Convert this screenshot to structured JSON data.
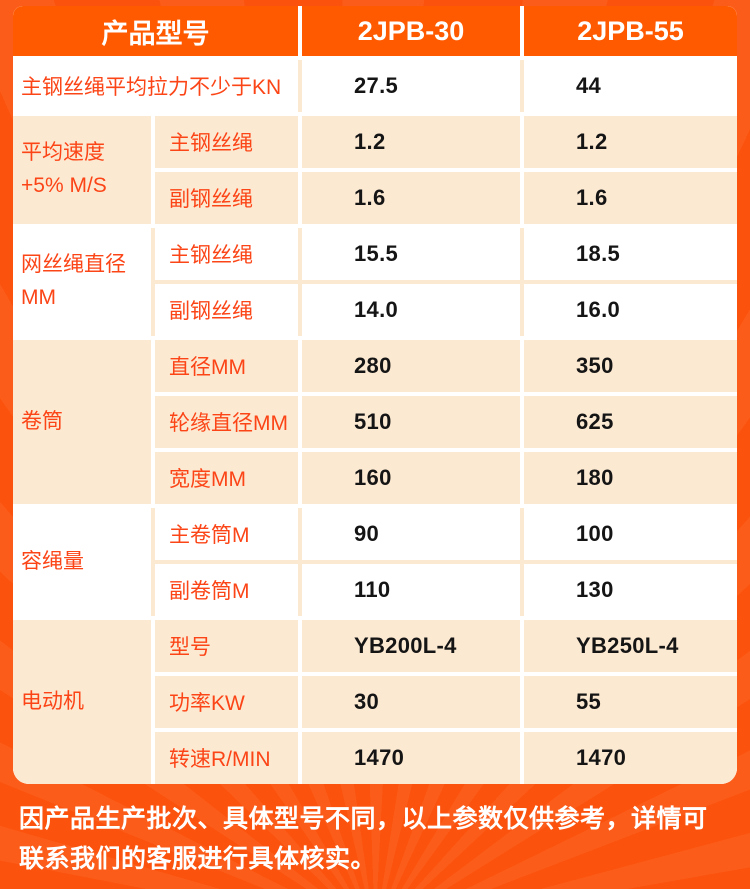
{
  "theme": {
    "page_bg": "#fb530e",
    "header_cell_bg": "#ff5a00",
    "peach_cell_bg": "#fce9d2",
    "white_cell_bg": "#ffffff",
    "label_text": "#fb4517",
    "value_text": "#151515",
    "header_text": "#ffffff"
  },
  "table": {
    "header": {
      "col_label": "产品型号",
      "col1": "2JPB-30",
      "col2": "2JPB-55"
    },
    "sections": [
      {
        "label": "主钢丝绳平均拉力不少于KN",
        "values": [
          "27.5",
          "44"
        ]
      },
      {
        "label": "平均速度+5% M/S",
        "rows": [
          {
            "sub": "主钢丝绳",
            "values": [
              "1.2",
              "1.2"
            ]
          },
          {
            "sub": "副钢丝绳",
            "values": [
              "1.6",
              "1.6"
            ]
          }
        ]
      },
      {
        "label": "网丝绳直径MM",
        "rows": [
          {
            "sub": "主钢丝绳",
            "values": [
              "15.5",
              "18.5"
            ]
          },
          {
            "sub": "副钢丝绳",
            "values": [
              "14.0",
              "16.0"
            ]
          }
        ]
      },
      {
        "label": "卷筒",
        "rows": [
          {
            "sub": "直径MM",
            "values": [
              "280",
              "350"
            ]
          },
          {
            "sub": "轮缘直径MM",
            "values": [
              "510",
              "625"
            ]
          },
          {
            "sub": "宽度MM",
            "values": [
              "160",
              "180"
            ]
          }
        ]
      },
      {
        "label": "容绳量",
        "rows": [
          {
            "sub": "主卷筒M",
            "values": [
              "90",
              "100"
            ]
          },
          {
            "sub": "副卷筒M",
            "values": [
              "110",
              "130"
            ]
          }
        ]
      },
      {
        "label": "电动机",
        "rows": [
          {
            "sub": "型号",
            "values": [
              "YB200L-4",
              "YB250L-4"
            ]
          },
          {
            "sub": "功率KW",
            "values": [
              "30",
              "55"
            ]
          },
          {
            "sub": "转速R/MIN",
            "values": [
              "1470",
              "1470"
            ]
          }
        ]
      }
    ]
  },
  "footer": {
    "note": "因产品生产批次、具体型号不同，以上参数仅供参考，详情可联系我们的客服进行具体核实。"
  }
}
